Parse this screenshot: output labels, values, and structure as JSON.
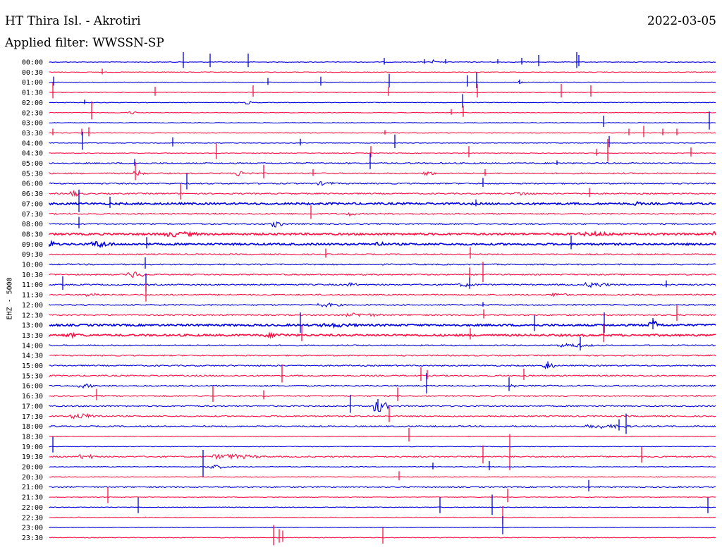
{
  "header": {
    "station": "HT Thira Isl. - Akrotiri",
    "date": "2022-03-05",
    "filter": "Applied filter: WWSSN-SP"
  },
  "colors": {
    "even_row": "#0000dd",
    "odd_row": "#ff1144"
  },
  "chart_data": {
    "type": "line",
    "title": "HT Thira Isl. - Akrotiri",
    "ylabel": "EHZ - 5000",
    "grid": false,
    "rows": [
      "00:00",
      "00:30",
      "01:00",
      "01:30",
      "02:00",
      "02:30",
      "03:00",
      "03:30",
      "04:00",
      "04:30",
      "05:00",
      "05:30",
      "06:00",
      "06:30",
      "07:00",
      "07:30",
      "08:00",
      "08:30",
      "09:00",
      "09:30",
      "10:00",
      "10:30",
      "11:00",
      "11:30",
      "12:00",
      "12:30",
      "13:00",
      "13:30",
      "14:00",
      "14:30",
      "15:00",
      "15:30",
      "16:00",
      "16:30",
      "17:00",
      "17:30",
      "18:00",
      "18:30",
      "19:00",
      "19:30",
      "20:00",
      "20:30",
      "21:00",
      "21:30",
      "22:00",
      "22:30",
      "23:00",
      "23:30"
    ],
    "noise_level": [
      1,
      1,
      1,
      1,
      1,
      1,
      1,
      1,
      1,
      1,
      2,
      2,
      2,
      2,
      3,
      2,
      2,
      3,
      3,
      2,
      2,
      2,
      2,
      2,
      2,
      2,
      3,
      3,
      2,
      2,
      2,
      2,
      2,
      2,
      2,
      2,
      2,
      1,
      1,
      2,
      1,
      1,
      2,
      1,
      1,
      1,
      1,
      1
    ],
    "spikes": [
      [
        [
          190,
          14
        ],
        [
          228,
          -12
        ],
        [
          282,
          12
        ],
        [
          475,
          6
        ],
        [
          532,
          4
        ],
        [
          562,
          4
        ],
        [
          636,
          4
        ],
        [
          670,
          6
        ],
        [
          694,
          10
        ],
        [
          748,
          14
        ],
        [
          751,
          -10
        ]
      ],
      [
        [
          75,
          5
        ]
      ],
      [
        [
          6,
          8
        ],
        [
          310,
          -6
        ],
        [
          385,
          8
        ],
        [
          482,
          -12
        ],
        [
          593,
          -10
        ],
        [
          606,
          14
        ],
        [
          667,
          4
        ]
      ],
      [
        [
          5,
          -14
        ],
        [
          150,
          8
        ],
        [
          289,
          -10
        ],
        [
          481,
          8
        ],
        [
          607,
          -12
        ],
        [
          726,
          -12
        ],
        [
          768,
          10
        ]
      ],
      [
        [
          50,
          -4
        ],
        [
          586,
          12
        ]
      ],
      [
        [
          60,
          16
        ],
        [
          570,
          -5
        ],
        [
          587,
          10
        ]
      ],
      [
        [
          786,
          -10
        ],
        [
          936,
          -16
        ]
      ],
      [
        [
          5,
          -6
        ],
        [
          46,
          -6
        ],
        [
          56,
          -8
        ],
        [
          476,
          -4
        ],
        [
          822,
          -6
        ],
        [
          843,
          -10
        ],
        [
          870,
          -6
        ],
        [
          890,
          -6
        ]
      ],
      [
        [
          47,
          -16
        ],
        [
          175,
          8
        ],
        [
          356,
          -6
        ],
        [
          490,
          -12
        ],
        [
          794,
          -10
        ]
      ],
      [
        [
          237,
          14
        ],
        [
          456,
          -10
        ],
        [
          595,
          -10
        ],
        [
          792,
          -20
        ],
        [
          776,
          -6
        ],
        [
          910,
          -8
        ]
      ],
      [
        [
          121,
          6
        ],
        [
          455,
          -14
        ],
        [
          720,
          -4
        ]
      ],
      [
        [
          122,
          -16
        ],
        [
          304,
          -12
        ],
        [
          374,
          -6
        ],
        [
          618,
          6
        ]
      ],
      [
        [
          195,
          -14
        ],
        [
          615,
          8
        ]
      ],
      [
        [
          186,
          14
        ],
        [
          766,
          -8
        ]
      ],
      [
        [
          42,
          -20
        ],
        [
          86,
          -10
        ],
        [
          605,
          -6
        ]
      ],
      [
        [
          371,
          -12
        ]
      ],
      [
        [
          42,
          -10
        ]
      ],
      [],
      [
        [
          138,
          -10
        ],
        [
          740,
          12
        ]
      ],
      [
        [
          392,
          -8
        ],
        [
          597,
          -10
        ]
      ],
      [
        [
          136,
          -10
        ]
      ],
      [
        [
          596,
          -10
        ],
        [
          615,
          -18
        ]
      ],
      [
        [
          19,
          -12
        ],
        [
          137,
          -16
        ],
        [
          596,
          -10
        ],
        [
          875,
          -6
        ]
      ],
      [
        [
          137,
          -16
        ]
      ],
      [
        [
          615,
          -4
        ]
      ],
      [
        [
          616,
          -8
        ],
        [
          890,
          -14
        ]
      ],
      [
        [
          356,
          -18
        ],
        [
          688,
          -14
        ],
        [
          787,
          -18
        ],
        [
          856,
          -10
        ]
      ],
      [
        [
          358,
          -14
        ],
        [
          597,
          -10
        ],
        [
          786,
          -16
        ]
      ],
      [
        [
          753,
          -12
        ]
      ],
      [],
      [
        [
          707,
          -6
        ]
      ],
      [
        [
          330,
          -16
        ],
        [
          527,
          -12
        ],
        [
          536,
          -8
        ],
        [
          673,
          -10
        ]
      ],
      [
        [
          535,
          -18
        ],
        [
          652,
          -12
        ]
      ],
      [
        [
          67,
          -10
        ],
        [
          232,
          -14
        ],
        [
          304,
          -8
        ],
        [
          494,
          -12
        ]
      ],
      [
        [
          427,
          -16
        ],
        [
          466,
          -10
        ]
      ],
      [
        [
          482,
          -14
        ]
      ],
      [
        [
          808,
          -10
        ],
        [
          818,
          -18
        ]
      ],
      [
        [
          510,
          -12
        ]
      ],
      [
        [
          5,
          -14
        ]
      ],
      [
        [
          615,
          -16
        ],
        [
          653,
          -32
        ],
        [
          840,
          -14
        ]
      ],
      [
        [
          218,
          -24
        ],
        [
          544,
          -6
        ],
        [
          624,
          -8
        ]
      ],
      [
        [
          496,
          -8
        ]
      ],
      [
        [
          765,
          -10
        ]
      ],
      [
        [
          83,
          -14
        ],
        [
          650,
          -12
        ]
      ],
      [
        [
          126,
          -14
        ],
        [
          554,
          -14
        ],
        [
          628,
          -18
        ],
        [
          934,
          -14
        ]
      ],
      [
        [
          643,
          -16
        ]
      ],
      [
        [
          643,
          -16
        ]
      ],
      [
        [
          318,
          -18
        ],
        [
          326,
          -12
        ],
        [
          331,
          -10
        ],
        [
          473,
          -14
        ]
      ]
    ],
    "bursts": [
      [
        [
          542,
          6,
          4
        ]
      ],
      [],
      [
        [
          666,
          6,
          3
        ]
      ],
      [],
      [
        [
          278,
          10,
          3
        ]
      ],
      [
        [
          110,
          14,
          3
        ]
      ],
      [],
      [],
      [],
      [],
      [],
      [
        [
          120,
          20,
          4
        ],
        [
          260,
          30,
          4
        ],
        [
          530,
          18,
          4
        ]
      ],
      [
        [
          380,
          30,
          3
        ]
      ],
      [
        [
          30,
          14,
          5
        ],
        [
          660,
          30,
          3
        ]
      ],
      [
        [
          826,
          20,
          3
        ]
      ],
      [
        [
          420,
          20,
          3
        ]
      ],
      [
        [
          314,
          20,
          5
        ]
      ],
      [
        [
          160,
          60,
          4
        ],
        [
          750,
          80,
          3
        ],
        [
          940,
          14,
          5
        ]
      ],
      [
        [
          0,
          10,
          5
        ],
        [
          60,
          34,
          5
        ],
        [
          460,
          20,
          4
        ]
      ],
      [],
      [],
      [
        [
          110,
          30,
          5
        ]
      ],
      [
        [
          420,
          20,
          3
        ],
        [
          580,
          30,
          3
        ],
        [
          760,
          40,
          4
        ]
      ],
      [
        [
          50,
          30,
          3
        ],
        [
          710,
          30,
          3
        ]
      ],
      [
        [
          380,
          40,
          3
        ]
      ],
      [
        [
          420,
          60,
          3
        ]
      ],
      [
        [
          850,
          20,
          7
        ],
        [
          380,
          80,
          3
        ]
      ],
      [
        [
          20,
          40,
          3
        ],
        [
          300,
          60,
          3
        ]
      ],
      [
        [
          720,
          60,
          3
        ]
      ],
      [],
      [
        [
          700,
          20,
          5
        ]
      ],
      [],
      [
        [
          40,
          30,
          3
        ],
        [
          652,
          10,
          4
        ]
      ],
      [],
      [
        [
          460,
          20,
          11
        ]
      ],
      [
        [
          30,
          50,
          4
        ]
      ],
      [
        [
          760,
          80,
          3
        ]
      ],
      [],
      [],
      [
        [
          40,
          30,
          4
        ],
        [
          230,
          80,
          4
        ]
      ],
      [
        [
          220,
          40,
          3
        ]
      ],
      [],
      [],
      [],
      [],
      [],
      [],
      []
    ]
  }
}
